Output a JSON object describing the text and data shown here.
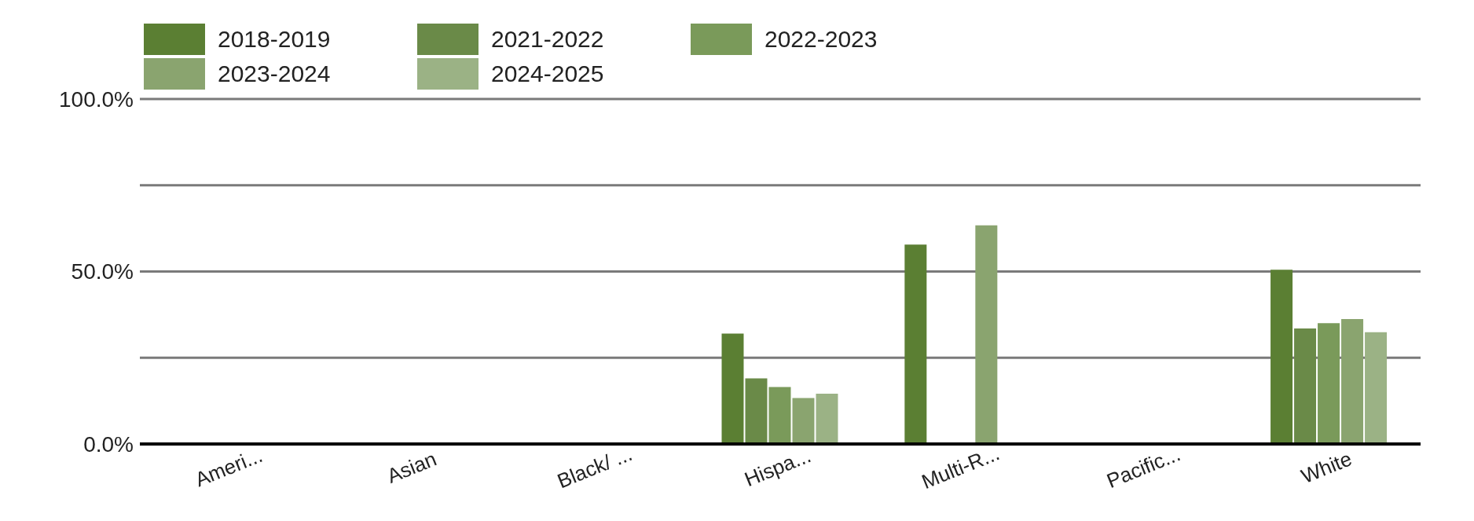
{
  "chart_data": {
    "type": "bar",
    "categories": [
      "Ameri...",
      "Asian",
      "Black/ ...",
      "Hispa...",
      "Multi-R...",
      "Pacific...",
      "White"
    ],
    "series": [
      {
        "name": "2018-2019",
        "color": "#5b7f33",
        "values": [
          null,
          null,
          null,
          32,
          57.8,
          null,
          50.5
        ]
      },
      {
        "name": "2021-2022",
        "color": "#6a8a48",
        "values": [
          null,
          null,
          null,
          19,
          null,
          null,
          33.5
        ]
      },
      {
        "name": "2022-2023",
        "color": "#7a9a5a",
        "values": [
          null,
          null,
          null,
          16.5,
          null,
          null,
          35
        ]
      },
      {
        "name": "2023-2024",
        "color": "#8aa46f",
        "values": [
          null,
          null,
          null,
          13.3,
          63.4,
          null,
          36.2
        ]
      },
      {
        "name": "2024-2025",
        "color": "#9bb285",
        "values": [
          null,
          null,
          null,
          14.6,
          null,
          null,
          32.4
        ]
      }
    ],
    "ylim": [
      0,
      100
    ],
    "yticks": [
      {
        "value": 0,
        "label": "0.0%"
      },
      {
        "value": 25,
        "label": null
      },
      {
        "value": 50,
        "label": "50.0%"
      },
      {
        "value": 75,
        "label": null
      },
      {
        "value": 100,
        "label": "100.0%"
      }
    ],
    "grid": "y",
    "legend": "top left"
  }
}
